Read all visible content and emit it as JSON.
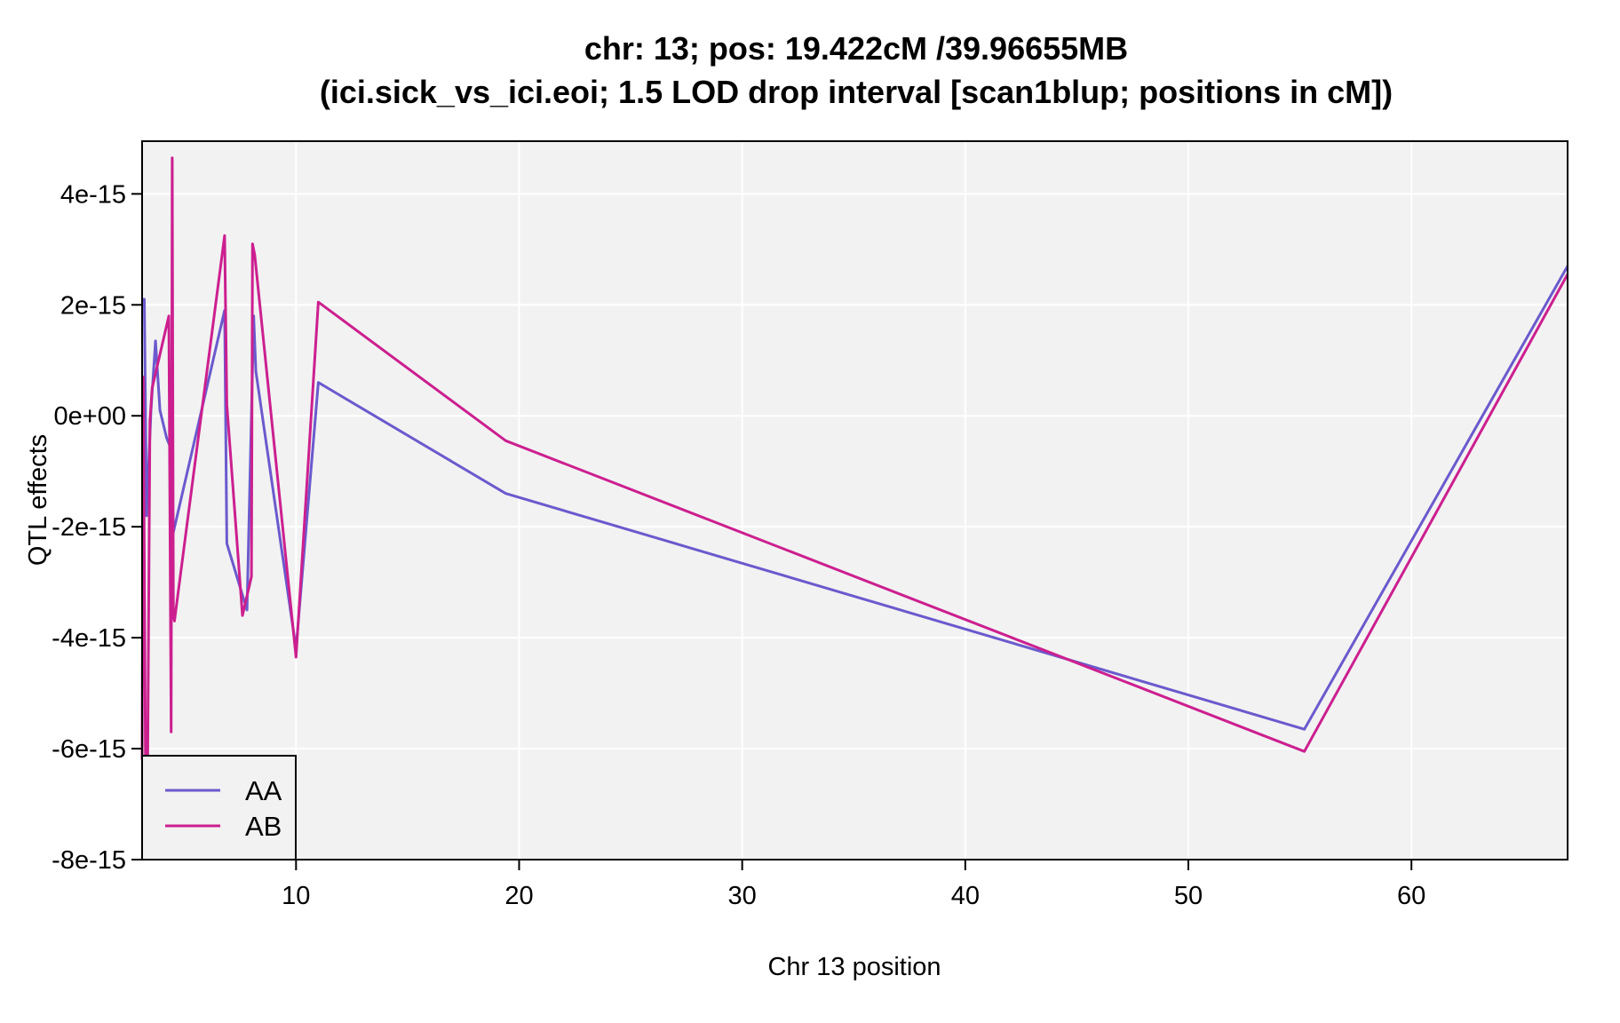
{
  "chart_data": {
    "type": "line",
    "title": "chr: 13; pos: 19.422cM /39.96655MB",
    "subtitle": "(ici.sick_vs_ici.eoi; 1.5 LOD drop interval [scan1blup; positions in cM])",
    "xlabel": "Chr 13 position",
    "ylabel": "QTL effects",
    "xlim": [
      3.1,
      67.0
    ],
    "ylim": [
      -8e-15,
      4.95e-15
    ],
    "xticks": [
      10,
      20,
      30,
      40,
      50,
      60
    ],
    "xtick_labels": [
      "10",
      "20",
      "30",
      "40",
      "50",
      "60"
    ],
    "yticks": [
      4e-15,
      2e-15,
      0,
      -2e-15,
      -4e-15,
      -6e-15,
      -8e-15
    ],
    "ytick_labels": [
      "4e-15",
      "2e-15",
      "0e+00",
      "-2e-15",
      "-4e-15",
      "-6e-15",
      "-8e-15"
    ],
    "background": "#f2f2f2",
    "grid": true,
    "legend": {
      "placement": "bottom-left",
      "entries": [
        "AA",
        "AB"
      ]
    },
    "series": [
      {
        "name": "AA",
        "color": "#6a5acd",
        "x": [
          3.1,
          3.2,
          3.3,
          3.5,
          3.7,
          3.9,
          4.2,
          4.4,
          4.5,
          6.8,
          6.9,
          7.8,
          8.1,
          8.2,
          10.0,
          11.0,
          19.4,
          55.2,
          67.0
        ],
        "y": [
          2.1e-15,
          2.1e-15,
          -1.8e-15,
          1e-16,
          1.35e-15,
          1e-16,
          -4e-16,
          -6e-16,
          -2.1e-15,
          1.9e-15,
          -2.3e-15,
          -3.5e-15,
          1.8e-15,
          8e-16,
          -4.2e-15,
          6e-16,
          -1.4e-15,
          -5.65e-15,
          2.7e-15
        ]
      },
      {
        "name": "AB",
        "color": "#cc1f8f",
        "x": [
          3.1,
          3.15,
          3.25,
          3.35,
          3.45,
          3.55,
          4.3,
          4.4,
          4.45,
          4.5,
          4.55,
          6.8,
          6.9,
          7.6,
          8.0,
          8.05,
          8.15,
          10.0,
          11.0,
          19.4,
          55.2,
          67.0
        ],
        "y": [
          -6.2e-15,
          7e-16,
          -6.2e-15,
          -6.2e-15,
          -1e-16,
          5e-16,
          1.8e-15,
          -5.7e-15,
          4.65e-15,
          -3.6e-15,
          -3.7e-15,
          3.25e-15,
          2e-16,
          -3.6e-15,
          -2.9e-15,
          3.1e-15,
          2.9e-15,
          -4.35e-15,
          2.05e-15,
          -4.5e-16,
          -6.05e-15,
          2.55e-15
        ]
      }
    ]
  }
}
